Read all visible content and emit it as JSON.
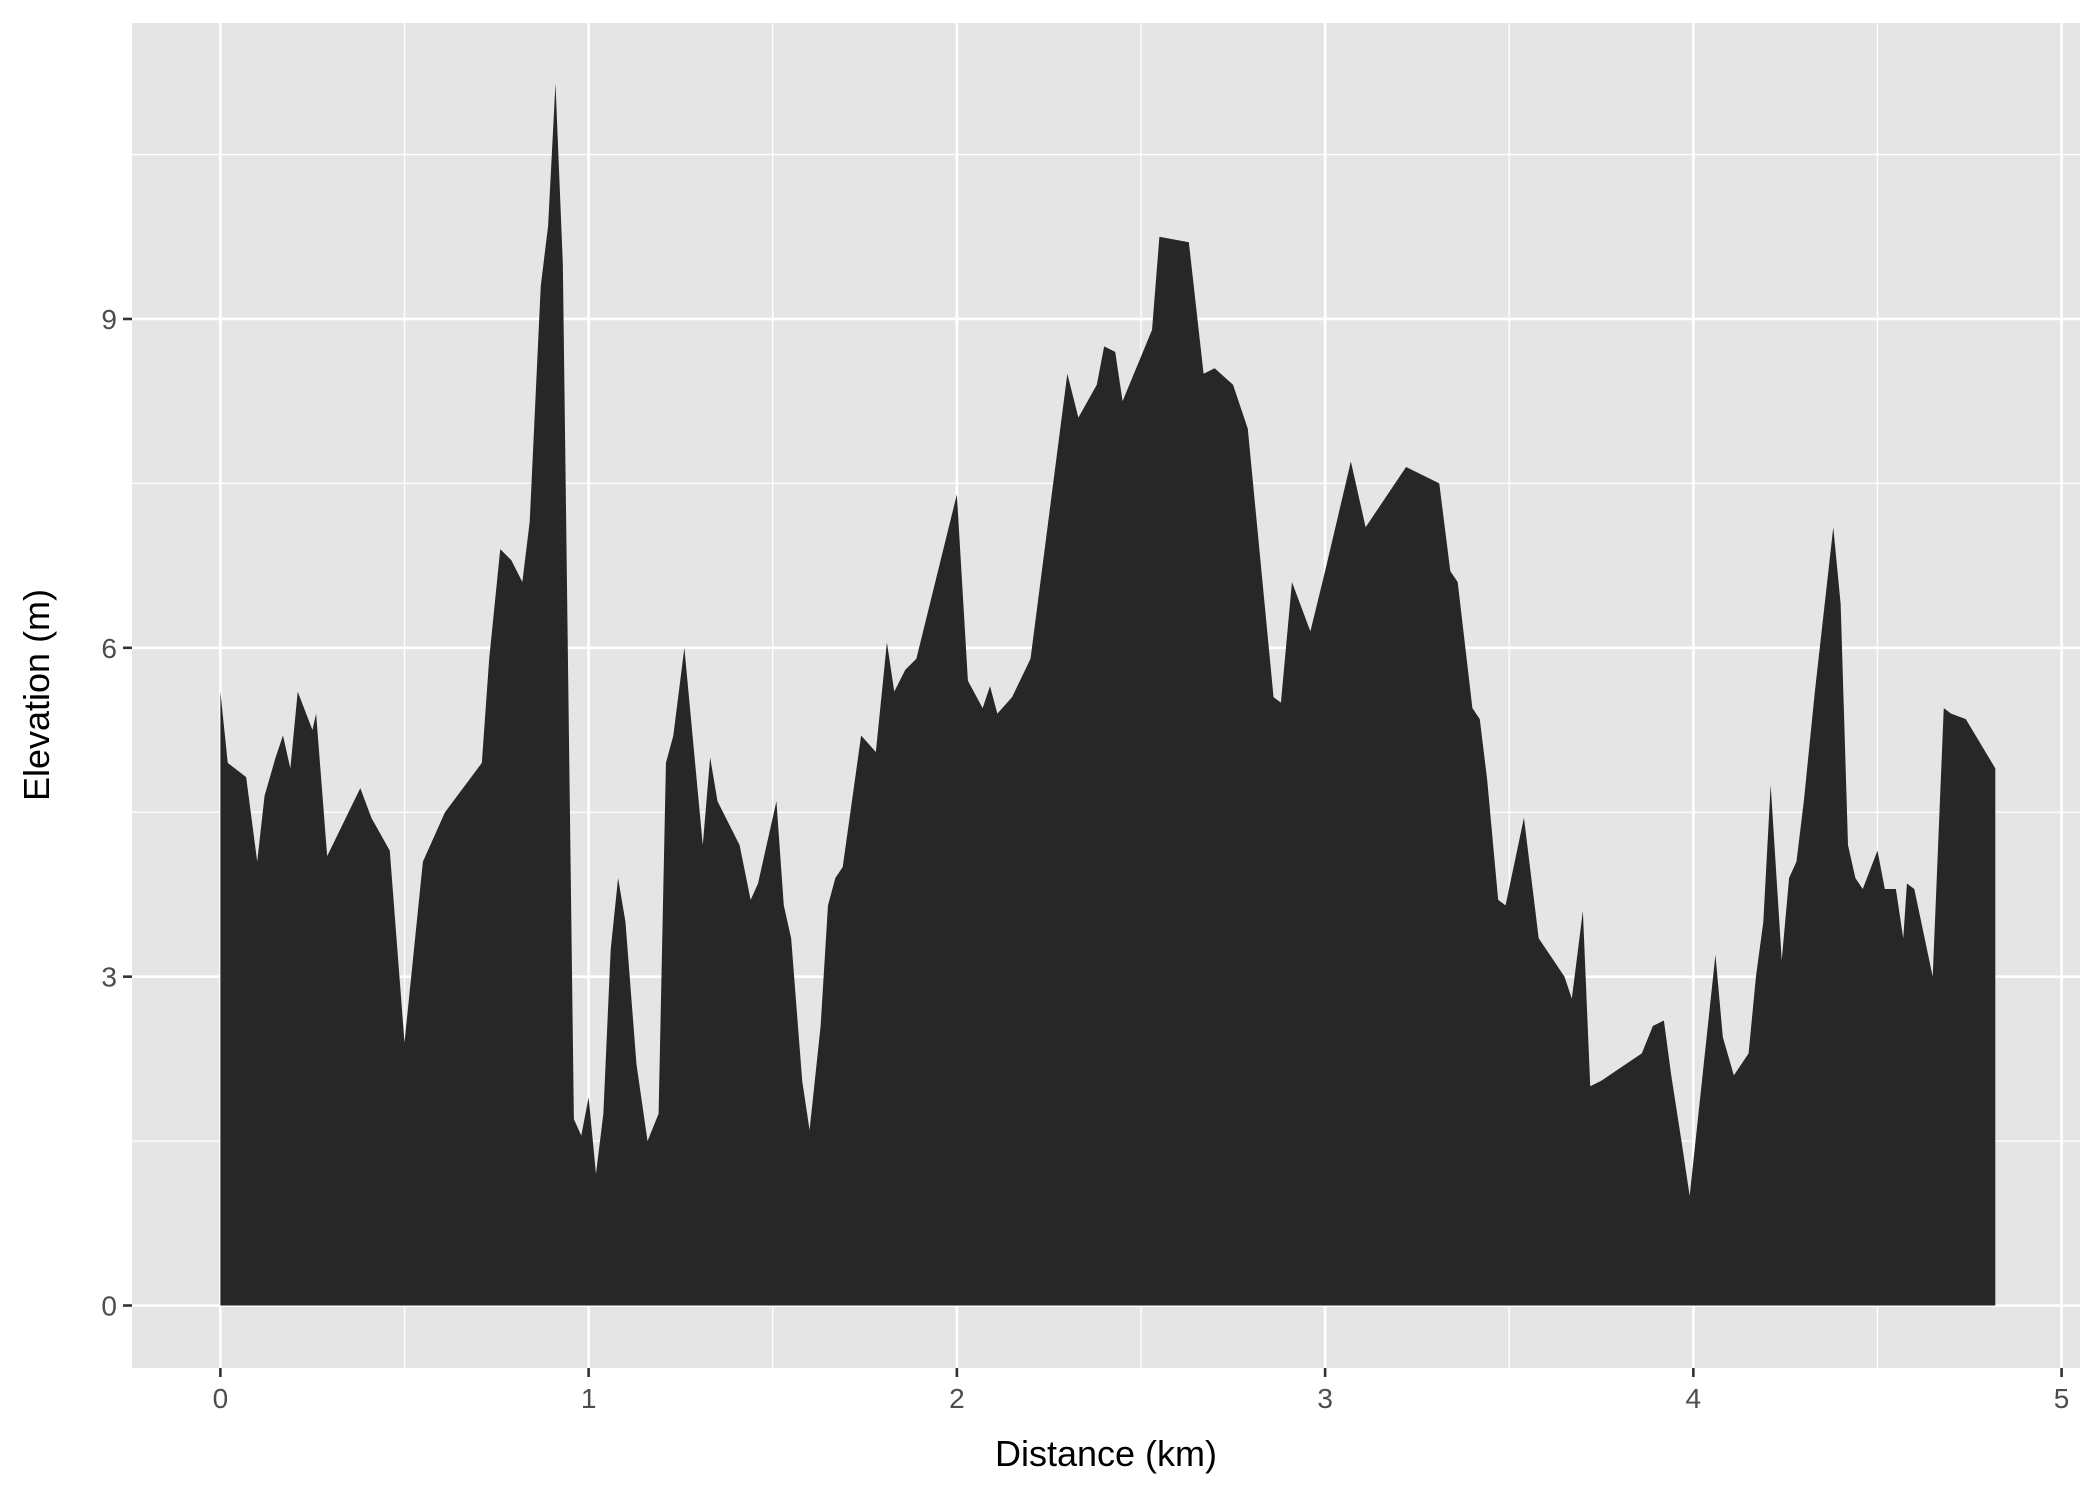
{
  "chart_data": {
    "type": "area",
    "title": "",
    "xlabel": "Distance (km)",
    "ylabel": "Elevation (m)",
    "xlim": [
      -0.24,
      5.05
    ],
    "ylim": [
      -0.57,
      11.7
    ],
    "x_ticks": [
      "0",
      "1",
      "2",
      "3",
      "4",
      "5"
    ],
    "y_ticks": [
      "0",
      "3",
      "6",
      "9"
    ],
    "grid": true,
    "fill_color": "#272727",
    "panel_color": "#e5e5e5",
    "series": [
      {
        "x": [
          0.0,
          0.02,
          0.07,
          0.1,
          0.12,
          0.15,
          0.17,
          0.19,
          0.21,
          0.25,
          0.26,
          0.29,
          0.38,
          0.41,
          0.46,
          0.5,
          0.55,
          0.61,
          0.71,
          0.73,
          0.76,
          0.79,
          0.82,
          0.84,
          0.87,
          0.89,
          0.91,
          0.93,
          0.96,
          0.98,
          1.0,
          1.02,
          1.04,
          1.06,
          1.08,
          1.1,
          1.13,
          1.16,
          1.19,
          1.21,
          1.23,
          1.26,
          1.31,
          1.33,
          1.35,
          1.41,
          1.44,
          1.46,
          1.51,
          1.53,
          1.55,
          1.58,
          1.6,
          1.63,
          1.65,
          1.67,
          1.69,
          1.74,
          1.78,
          1.81,
          1.83,
          1.86,
          1.89,
          2.0,
          2.03,
          2.07,
          2.09,
          2.11,
          2.15,
          2.2,
          2.3,
          2.33,
          2.38,
          2.4,
          2.43,
          2.45,
          2.53,
          2.55,
          2.63,
          2.67,
          2.7,
          2.75,
          2.79,
          2.86,
          2.88,
          2.91,
          2.96,
          3.0,
          3.07,
          3.11,
          3.22,
          3.31,
          3.34,
          3.36,
          3.4,
          3.42,
          3.44,
          3.47,
          3.49,
          3.54,
          3.58,
          3.65,
          3.67,
          3.7,
          3.72,
          3.75,
          3.86,
          3.89,
          3.92,
          3.94,
          3.97,
          3.99,
          4.06,
          4.08,
          4.11,
          4.15,
          4.17,
          4.19,
          4.21,
          4.24,
          4.26,
          4.28,
          4.3,
          4.33,
          4.38,
          4.4,
          4.42,
          4.44,
          4.46,
          4.5,
          4.52,
          4.55,
          4.57,
          4.58,
          4.6,
          4.65,
          4.68,
          4.7,
          4.74,
          4.82
        ],
        "y": [
          5.6,
          4.95,
          4.82,
          4.05,
          4.65,
          5.0,
          5.2,
          4.9,
          5.6,
          5.25,
          5.4,
          4.1,
          4.72,
          4.45,
          4.15,
          2.4,
          4.05,
          4.5,
          4.95,
          5.9,
          6.9,
          6.8,
          6.6,
          7.15,
          9.3,
          9.85,
          11.15,
          9.5,
          1.7,
          1.55,
          1.9,
          1.2,
          1.75,
          3.25,
          3.9,
          3.5,
          2.2,
          1.5,
          1.75,
          4.95,
          5.2,
          6.0,
          4.2,
          5.0,
          4.6,
          4.2,
          3.7,
          3.85,
          4.6,
          3.65,
          3.35,
          2.05,
          1.6,
          2.55,
          3.65,
          3.9,
          4.0,
          5.2,
          5.05,
          6.05,
          5.6,
          5.8,
          5.9,
          7.4,
          5.7,
          5.45,
          5.65,
          5.4,
          5.55,
          5.9,
          8.5,
          8.1,
          8.4,
          8.75,
          8.7,
          8.25,
          8.9,
          9.75,
          9.7,
          8.5,
          8.55,
          8.4,
          8.0,
          5.55,
          5.5,
          6.6,
          6.15,
          6.7,
          7.7,
          7.1,
          7.65,
          7.5,
          6.7,
          6.6,
          5.45,
          5.35,
          4.8,
          3.7,
          3.65,
          4.45,
          3.35,
          3.0,
          2.8,
          3.6,
          2.0,
          2.05,
          2.3,
          2.55,
          2.6,
          2.1,
          1.45,
          1.0,
          3.2,
          2.45,
          2.1,
          2.3,
          3.0,
          3.5,
          4.75,
          3.15,
          3.9,
          4.05,
          4.6,
          5.6,
          7.1,
          6.4,
          4.2,
          3.9,
          3.8,
          4.15,
          3.8,
          3.8,
          3.35,
          3.85,
          3.8,
          3.0,
          5.45,
          5.4,
          5.35,
          4.9
        ]
      }
    ]
  }
}
